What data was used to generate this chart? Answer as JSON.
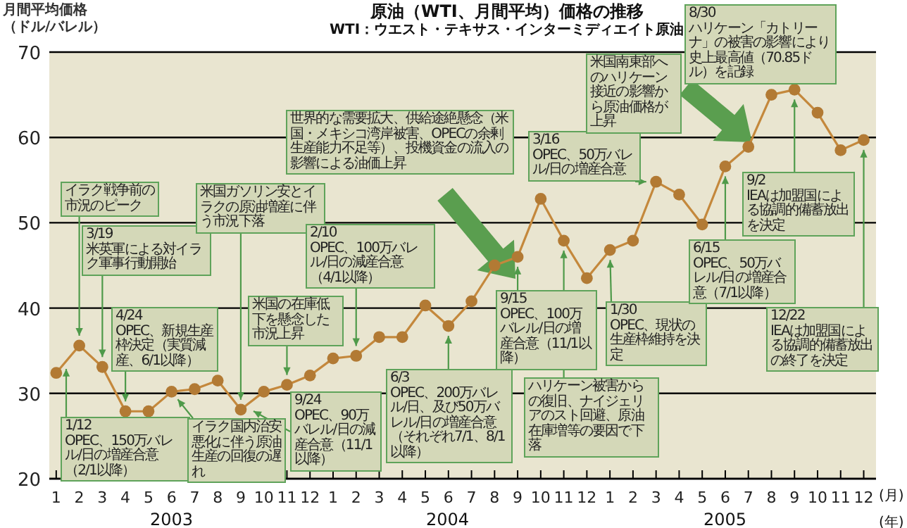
{
  "chart_data": {
    "type": "line",
    "title": "原油（WTI、月間平均）価格の推移",
    "subtitle": "WTI：ウエスト・テキサス・インターミディエイト原油",
    "ylabel": "月間平均価格（ドル/バレル）",
    "xlabel": "(月)",
    "x": [
      "2003-01",
      "2003-02",
      "2003-03",
      "2003-04",
      "2003-05",
      "2003-06",
      "2003-07",
      "2003-08",
      "2003-09",
      "2003-10",
      "2003-11",
      "2003-12",
      "2004-01",
      "2004-02",
      "2004-03",
      "2004-04",
      "2004-05",
      "2004-06",
      "2004-07",
      "2004-08",
      "2004-09",
      "2004-10",
      "2004-11",
      "2004-12",
      "2005-01",
      "2005-02",
      "2005-03",
      "2005-04",
      "2005-05",
      "2005-06",
      "2005-07",
      "2005-08",
      "2005-09",
      "2005-10",
      "2005-11",
      "2005-12"
    ],
    "series": [
      {
        "color": "#c4883c",
        "values": [
          32.4,
          35.6,
          33.1,
          27.9,
          27.9,
          30.2,
          30.5,
          31.5,
          28.1,
          30.2,
          31.0,
          32.1,
          34.1,
          34.4,
          36.6,
          36.6,
          40.3,
          37.9,
          40.8,
          45.0,
          46.0,
          52.8,
          47.9,
          43.5,
          46.8,
          47.9,
          54.8,
          53.3,
          49.8,
          56.6,
          58.9,
          65.0,
          65.6,
          62.9,
          58.5,
          59.7
        ]
      }
    ],
    "marker": "circle",
    "grid": "y",
    "xlim": [
      "2002-12-22",
      "2005-12-17"
    ],
    "ylim": [
      20,
      70
    ],
    "yticks": [
      20,
      30,
      40,
      50,
      60,
      70
    ],
    "xticks": [
      {
        "value": "2003-01",
        "label": "1"
      },
      {
        "value": "2003-02",
        "label": "2"
      },
      {
        "value": "2003-03",
        "label": "3"
      },
      {
        "value": "2003-04",
        "label": "4"
      },
      {
        "value": "2003-05",
        "label": "5"
      },
      {
        "value": "2003-06",
        "label": "6"
      },
      {
        "value": "2003-07",
        "label": "7"
      },
      {
        "value": "2003-08",
        "label": "8"
      },
      {
        "value": "2003-09",
        "label": "9"
      },
      {
        "value": "2003-10",
        "label": "10"
      },
      {
        "value": "2003-11",
        "label": "11"
      },
      {
        "value": "2003-12",
        "label": "12"
      },
      {
        "value": "2004-01",
        "label": "1"
      },
      {
        "value": "2004-02",
        "label": "2"
      },
      {
        "value": "2004-03",
        "label": "3"
      },
      {
        "value": "2004-04",
        "label": "4"
      },
      {
        "value": "2004-05",
        "label": "5"
      },
      {
        "value": "2004-06",
        "label": "6"
      },
      {
        "value": "2004-07",
        "label": "7"
      },
      {
        "value": "2004-08",
        "label": "8"
      },
      {
        "value": "2004-09",
        "label": "9"
      },
      {
        "value": "2004-10",
        "label": "10"
      },
      {
        "value": "2004-11",
        "label": "11"
      },
      {
        "value": "2004-12",
        "label": "12"
      },
      {
        "value": "2005-01",
        "label": "1"
      },
      {
        "value": "2005-02",
        "label": "2"
      },
      {
        "value": "2005-03",
        "label": "3"
      },
      {
        "value": "2005-04",
        "label": "4"
      },
      {
        "value": "2005-05",
        "label": "5"
      },
      {
        "value": "2005-06",
        "label": "6"
      },
      {
        "value": "2005-07",
        "label": "7"
      },
      {
        "value": "2005-08",
        "label": "8"
      },
      {
        "value": "2005-09",
        "label": "9"
      },
      {
        "value": "2005-10",
        "label": "10"
      },
      {
        "value": "2005-11",
        "label": "11"
      },
      {
        "value": "2005-12",
        "label": "12"
      }
    ],
    "annotations": [
      {
        "text": "イラク戦争前の市況のピーク",
        "x": "2003-02",
        "y": 35.6
      },
      {
        "text": "3/19\n米英軍による対イラク軍事行動開始",
        "x": "2003-03",
        "y": 33.1
      },
      {
        "text": "4/24\nOPEC、新規生産枠決定（実質減産、6/1以降）",
        "x": "2003-04",
        "y": 27.9
      },
      "1/12\nOPEC、150万バレル/日の増産合意（2/1以降）",
      {
        "text": "イラク国内治安悪化に伴う原油生産の回復の遅れ",
        "x": "2003-06",
        "y": 30.2
      },
      {
        "text": "米国ガソリン安とイラクの原油増産に伴う市況下落",
        "x": "2003-09",
        "y": 28.1
      },
      "9/24\nOPEC、90万バレル/日の減産合意（11/1以降）",
      {
        "text": "米国の在庫低下を懸念した市況上昇",
        "x": "2003-11",
        "y": 31.0
      },
      {
        "text": "2/10\nOPEC、100万バレル/日の減産合意（4/1以降）",
        "x": "2004-02",
        "y": 34.4
      },
      {
        "text": "6/3\nOPEC、200万バレル/日、及び50万バレル/日の増産合意（それぞれ7/1、8/1以降）",
        "x": "2004-06",
        "y": 37.9
      },
      "世界的な需要拡大、供給途絶懸念（米国・メキシコ湾岸被害、OPECの余剰生産能力不足等）、投機資金の流入の影響による油価上昇",
      {
        "text": "9/15\nOPEC、100万バレル/日の増産合意（11/1以降）",
        "x": "2004-09",
        "y": 46.0
      },
      {
        "text": "ハリケーン被害からの復旧、ナイジェリアのスト回避、原油在庫増等の要因で下落",
        "x": "2004-11",
        "y": 47.9
      },
      {
        "text": "3/16\nOPEC、50万バレル/日の増産合意",
        "x": "2005-03",
        "y": 54.8
      },
      {
        "text": "1/30\nOPEC、現状の生産枠維持を決定",
        "x": "2005-01",
        "y": 46.8
      },
      {
        "text": "6/15\nOPEC、50万バレル/日の増産合意（7/1以降）",
        "x": "2005-06",
        "y": 56.6
      },
      "米国南東部へのハリケーン接近の影響から原油価格が上昇",
      {
        "text": "8/30\nハリケーン「カトリーナ」の被害の影響により史上最高値（70.85ドル）を記録",
        "x": "2005-09",
        "y": 65.6
      },
      {
        "text": "9/2\nIEAは加盟国による協調的備蓄放出を決定",
        "x": "2005-09",
        "y": 65.6
      },
      {
        "text": "12/22\nIEAは加盟国による協調的備蓄放出の終了を決定",
        "x": "2005-12",
        "y": 59.7
      },
      "2003",
      "2004",
      "2005",
      "(年)"
    ]
  }
}
